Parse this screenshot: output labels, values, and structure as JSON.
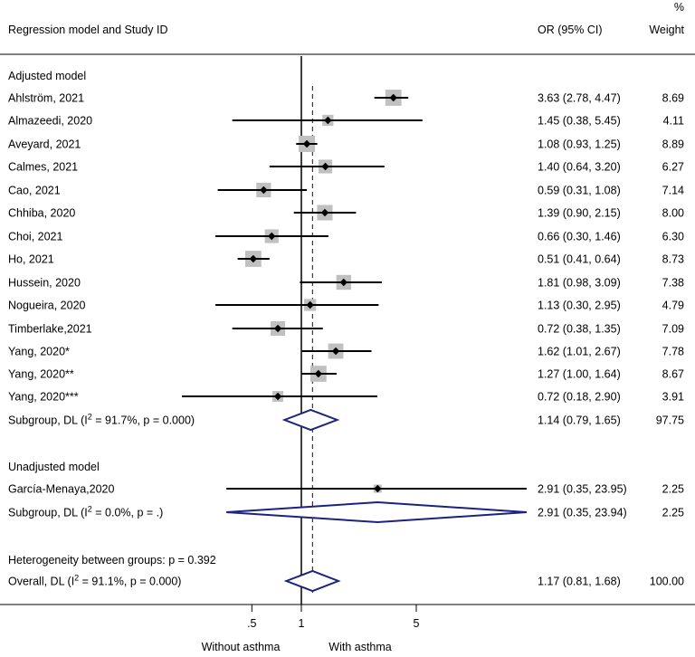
{
  "header": {
    "study_col": "Regression model and Study ID",
    "or_col": "OR (95% CI)",
    "weight_pct": "%",
    "weight_col": "Weight"
  },
  "groups": [
    {
      "label": "Adjusted model"
    },
    {
      "label": "Unadjusted model"
    }
  ],
  "heterogeneity": "Heterogeneity between groups: p = 0.392",
  "axis": {
    "ticks": [
      {
        "value": 0.5,
        "label": ".5"
      },
      {
        "value": 1,
        "label": "1"
      },
      {
        "value": 5,
        "label": "5"
      }
    ],
    "left_label": "Without asthma",
    "right_label": "With asthma"
  },
  "chart_data": {
    "type": "forest",
    "scale": "log",
    "xlim": [
      0.15,
      25
    ],
    "null_value": 1,
    "overall_estimate": 1.17,
    "colors": {
      "box": "#c0c0c0",
      "line": "#000000",
      "diamond": "#1a237e",
      "ref_line": "#8b1a1a"
    },
    "rows": [
      {
        "kind": "study",
        "label": "Ahlström, 2021",
        "or": 3.63,
        "lo": 2.78,
        "hi": 4.47,
        "ci_text": "3.63 (2.78, 4.47)",
        "weight": "8.69"
      },
      {
        "kind": "study",
        "label": "Almazeedi, 2020",
        "or": 1.45,
        "lo": 0.38,
        "hi": 5.45,
        "ci_text": "1.45 (0.38, 5.45)",
        "weight": "4.11"
      },
      {
        "kind": "study",
        "label": "Aveyard, 2021",
        "or": 1.08,
        "lo": 0.93,
        "hi": 1.25,
        "ci_text": "1.08 (0.93, 1.25)",
        "weight": "8.89"
      },
      {
        "kind": "study",
        "label": "Calmes, 2021",
        "or": 1.4,
        "lo": 0.64,
        "hi": 3.2,
        "ci_text": "1.40 (0.64, 3.20)",
        "weight": "6.27"
      },
      {
        "kind": "study",
        "label": "Cao, 2021",
        "or": 0.59,
        "lo": 0.31,
        "hi": 1.08,
        "ci_text": "0.59 (0.31, 1.08)",
        "weight": "7.14"
      },
      {
        "kind": "study",
        "label": "Chhiba, 2020",
        "or": 1.39,
        "lo": 0.9,
        "hi": 2.15,
        "ci_text": "1.39 (0.90, 2.15)",
        "weight": "8.00"
      },
      {
        "kind": "study",
        "label": "Choi, 2021",
        "or": 0.66,
        "lo": 0.3,
        "hi": 1.46,
        "ci_text": "0.66 (0.30, 1.46)",
        "weight": "6.30"
      },
      {
        "kind": "study",
        "label": "Ho, 2021",
        "or": 0.51,
        "lo": 0.41,
        "hi": 0.64,
        "ci_text": "0.51 (0.41, 0.64)",
        "weight": "8.73"
      },
      {
        "kind": "study",
        "label": "Hussein, 2020",
        "or": 1.81,
        "lo": 0.98,
        "hi": 3.09,
        "ci_text": "1.81 (0.98, 3.09)",
        "weight": "7.38"
      },
      {
        "kind": "study",
        "label": "Nogueira, 2020",
        "or": 1.13,
        "lo": 0.3,
        "hi": 2.95,
        "ci_text": "1.13 (0.30, 2.95)",
        "weight": "4.79"
      },
      {
        "kind": "study",
        "label": "Timberlake,2021",
        "or": 0.72,
        "lo": 0.38,
        "hi": 1.35,
        "ci_text": "0.72 (0.38, 1.35)",
        "weight": "7.09"
      },
      {
        "kind": "study",
        "label": "Yang, 2020*",
        "or": 1.62,
        "lo": 1.01,
        "hi": 2.67,
        "ci_text": "1.62 (1.01, 2.67)",
        "weight": "7.78"
      },
      {
        "kind": "study",
        "label": "Yang, 2020**",
        "or": 1.27,
        "lo": 1.0,
        "hi": 1.64,
        "ci_text": "1.27 (1.00, 1.64)",
        "weight": "8.67"
      },
      {
        "kind": "study",
        "label": "Yang, 2020***",
        "or": 0.72,
        "lo": 0.18,
        "hi": 2.9,
        "ci_text": "0.72 (0.18, 2.90)",
        "weight": "3.91"
      },
      {
        "kind": "summary",
        "label_pre": "Subgroup, DL (I",
        "label_sup": "2",
        "label_post": " = 91.7%, p = 0.000)",
        "or": 1.14,
        "lo": 0.79,
        "hi": 1.65,
        "ci_text": "1.14 (0.79, 1.65)",
        "weight": "97.75"
      },
      {
        "kind": "study",
        "label": "García-Menaya,2020",
        "or": 2.91,
        "lo": 0.35,
        "hi": 23.95,
        "ci_text": "2.91 (0.35, 23.95)",
        "weight": "2.25"
      },
      {
        "kind": "summary",
        "label_pre": "Subgroup, DL (I",
        "label_sup": "2",
        "label_post": " = 0.0%, p = .)",
        "or": 2.91,
        "lo": 0.35,
        "hi": 23.94,
        "ci_text": "2.91 (0.35, 23.94)",
        "weight": "2.25"
      },
      {
        "kind": "summary",
        "label_pre": "Overall, DL (I",
        "label_sup": "2",
        "label_post": " = 91.1%, p = 0.000)",
        "or": 1.17,
        "lo": 0.81,
        "hi": 1.68,
        "ci_text": "1.17 (0.81, 1.68)",
        "weight": "100.00"
      }
    ]
  }
}
